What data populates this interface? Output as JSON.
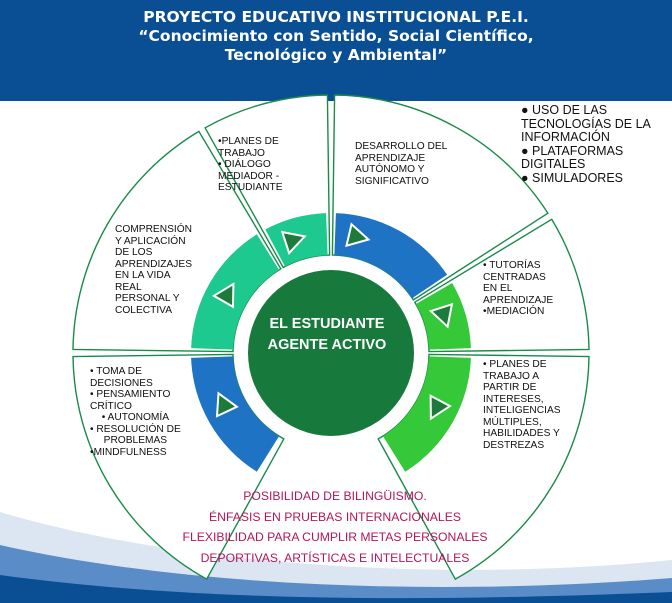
{
  "header": {
    "line1": "PROYECTO EDUCATIVO INSTITUCIONAL P.E.I.",
    "line2": "“Conocimiento con Sentido, Social Científico,",
    "line3": "Tecnológico y Ambiental”"
  },
  "center": {
    "line1": "EL ESTUDIANTE",
    "line2": "AGENTE ACTIVO"
  },
  "segments": {
    "top_left": [
      "•PLANES DE",
      "TRABAJO",
      "• DIÁLOGO",
      "MEDIADOR -",
      "ESTUDIANTE"
    ],
    "top_right": [
      "DESARROLLO DEL",
      "APRENDIZAJE",
      "AUTÓNOMO Y",
      "SIGNIFICATIVO"
    ],
    "left_upper": [
      "COMPRENSIÓN",
      "Y APLICACIÓN",
      "DE LOS",
      "APRENDIZAJES",
      "EN LA VIDA",
      "REAL",
      "PERSONAL Y",
      "COLECTIVA"
    ],
    "right_upper": [
      "• TUTORÍAS",
      "CENTRADAS",
      "EN EL",
      "APRENDIZAJE",
      "•MEDIACIÓN"
    ],
    "left_lower": [
      "• TOMA DE",
      "DECISIONES",
      "• PENSAMIENTO",
      "CRÍTICO",
      "• AUTONOMÍA",
      "• RESOLUCIÓN DE",
      "PROBLEMAS",
      "•MINDFULNESS"
    ],
    "right_lower": [
      "• PLANES DE",
      "TRABAJO A",
      "PARTIR DE",
      "INTERESES,",
      "INTELIGENCIAS",
      "MÚLTIPLES,",
      "HABILIDADES Y",
      "DESTREZAS"
    ]
  },
  "tech_bullets": [
    "● USO DE LAS",
    "TECNOLOGÍAS DE LA",
    "INFORMACIÓN",
    "●  PLATAFORMAS",
    "DIGITALES",
    "●  SIMULADORES"
  ],
  "bottom_lines": [
    "POSIBILIDAD DE BILINGÜISMO.",
    "ÉNFASIS EN PRUEBAS INTERNACIONALES",
    "FLEXIBILIDAD PARA CUMPLIR METAS PERSONALES",
    "DEPORTIVAS, ARTÍSTICAS E INTELECTUALES"
  ],
  "colors": {
    "header_bg": "#0a4f93",
    "center_circle": "#177a3c",
    "ring_blue": "#1f73c4",
    "ring_teal": "#1ec98f",
    "ring_green": "#35c93a",
    "outline": "#1a8a4a",
    "arrow": "#1d7a3a",
    "bottom_text": "#b3165a"
  }
}
